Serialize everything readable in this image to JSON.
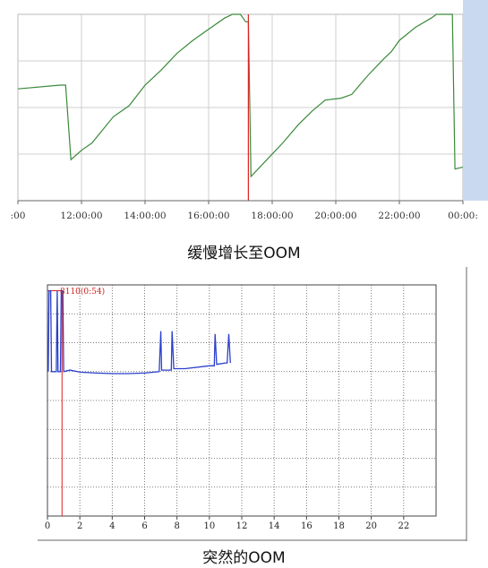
{
  "captions": {
    "top": "缓慢增长至OOM",
    "bottom": "突然的OOM"
  },
  "chart_data": [
    {
      "type": "line",
      "x_tick_labels": [
        ":00",
        "12:00:00",
        "14:00:00",
        "16:00:00",
        "18:00:00",
        "20:00:00",
        "22:00:00",
        "00:00:"
      ],
      "xlim": [
        "10:00",
        "24:00"
      ],
      "grid": true,
      "series": [
        {
          "color": "#3a8a3a",
          "points": [
            [
              "10:00",
              0.6
            ],
            [
              "11:20",
              0.62
            ],
            [
              "11:30",
              0.62
            ],
            [
              "11:40",
              0.22
            ],
            [
              "12:00",
              0.27
            ],
            [
              "12:20",
              0.31
            ],
            [
              "13:00",
              0.45
            ],
            [
              "13:30",
              0.51
            ],
            [
              "14:00",
              0.62
            ],
            [
              "14:30",
              0.7
            ],
            [
              "15:00",
              0.79
            ],
            [
              "15:30",
              0.86
            ],
            [
              "16:00",
              0.92
            ],
            [
              "16:30",
              0.98
            ],
            [
              "16:45",
              1.0
            ],
            [
              "17:00",
              1.0
            ],
            [
              "17:10",
              0.96
            ],
            [
              "17:15",
              0.96
            ],
            [
              "17:20",
              0.13
            ],
            [
              "17:50",
              0.22
            ],
            [
              "18:20",
              0.31
            ],
            [
              "18:50",
              0.41
            ],
            [
              "19:15",
              0.48
            ],
            [
              "19:40",
              0.54
            ],
            [
              "20:10",
              0.55
            ],
            [
              "20:30",
              0.57
            ],
            [
              "21:00",
              0.67
            ],
            [
              "21:30",
              0.76
            ],
            [
              "21:45",
              0.8
            ],
            [
              "22:00",
              0.86
            ],
            [
              "22:30",
              0.93
            ],
            [
              "23:00",
              0.98
            ],
            [
              "23:10",
              1.0
            ],
            [
              "23:40",
              1.0
            ],
            [
              "23:45",
              0.17
            ],
            [
              "24:00",
              0.18
            ]
          ]
        }
      ],
      "markers": [
        {
          "type": "vertical-line",
          "x": "17:15",
          "color": "#e02020"
        }
      ]
    },
    {
      "type": "line",
      "annotation": "8110(0:54)",
      "x_tick_labels": [
        "0",
        "2",
        "4",
        "6",
        "8",
        "10",
        "12",
        "14",
        "16",
        "18",
        "20",
        "22"
      ],
      "xlim": [
        0,
        24
      ],
      "ylim": [
        0,
        8
      ],
      "grid": true,
      "series": [
        {
          "color": "#2a3fcc",
          "points": [
            [
              0.05,
              5.0
            ],
            [
              0.1,
              7.8
            ],
            [
              0.2,
              7.8
            ],
            [
              0.25,
              5.0
            ],
            [
              0.55,
              5.0
            ],
            [
              0.6,
              7.8
            ],
            [
              0.65,
              5.0
            ],
            [
              0.8,
              5.0
            ],
            [
              0.85,
              7.8
            ],
            [
              0.95,
              7.8
            ],
            [
              1.0,
              5.0
            ],
            [
              1.4,
              5.05
            ],
            [
              2.0,
              4.98
            ],
            [
              3.0,
              4.95
            ],
            [
              4.0,
              4.93
            ],
            [
              5.0,
              4.93
            ],
            [
              6.0,
              4.95
            ],
            [
              6.9,
              5.0
            ],
            [
              7.0,
              6.4
            ],
            [
              7.05,
              5.05
            ],
            [
              7.5,
              5.05
            ],
            [
              7.65,
              5.05
            ],
            [
              7.7,
              6.4
            ],
            [
              7.8,
              5.1
            ],
            [
              8.5,
              5.1
            ],
            [
              10.0,
              5.2
            ],
            [
              10.3,
              5.2
            ],
            [
              10.35,
              6.3
            ],
            [
              10.45,
              5.25
            ],
            [
              11.0,
              5.3
            ],
            [
              11.1,
              5.3
            ],
            [
              11.2,
              6.3
            ],
            [
              11.3,
              5.3
            ]
          ]
        }
      ],
      "markers": [
        {
          "type": "vertical-line",
          "x": 0.9,
          "color": "#e02020"
        },
        {
          "type": "horizontal-segment",
          "x": [
            0,
            0.9
          ],
          "y": 7.8,
          "color": "#e02020"
        }
      ]
    }
  ]
}
